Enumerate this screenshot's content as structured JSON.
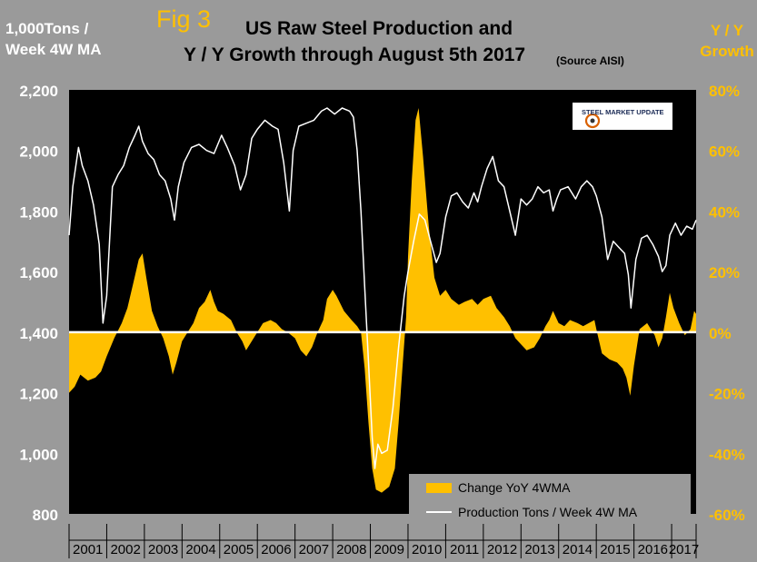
{
  "fig_label": "Fig 3",
  "title_line1": "US Raw Steel Production and",
  "title_line2": "Y / Y Growth through August 5th 2017",
  "source": "(Source AISI)",
  "left_axis_title": [
    "1,000Tons /",
    "Week 4W MA"
  ],
  "right_axis_title": [
    "Y / Y",
    "Growth"
  ],
  "logo_text": "STEEL MARKET UPDATE",
  "colors": {
    "background": "#9a9a9a",
    "plot": "#000000",
    "fill": "#ffc000",
    "line": "#ffffff",
    "right_axis": "#ffc000"
  },
  "chart_data": {
    "type": "area+line",
    "title": "US Raw Steel Production and Y / Y Growth through August 5th 2017",
    "source": "(Source AISI)",
    "x_range": [
      2001.0,
      2017.65
    ],
    "years": [
      "2001",
      "2002",
      "2003",
      "2004",
      "2005",
      "2006",
      "2007",
      "2008",
      "2009",
      "2010",
      "2011",
      "2012",
      "2013",
      "2014",
      "2015",
      "2016",
      "2017"
    ],
    "left_axis": {
      "label": "1,000Tons / Week 4W MA",
      "min": 800,
      "max": 2200,
      "ticks": [
        800,
        1000,
        1200,
        1400,
        1600,
        1800,
        2000,
        2200
      ],
      "tick_labels": [
        "800",
        "1,000",
        "1,200",
        "1,400",
        "1,600",
        "1,800",
        "2,000",
        "2,200"
      ]
    },
    "right_axis": {
      "label": "Y / Y Growth",
      "min": -60,
      "max": 80,
      "ticks": [
        -60,
        -40,
        -20,
        0,
        20,
        40,
        60,
        80
      ],
      "tick_labels": [
        "-60%",
        "-40%",
        "-20%",
        "0%",
        "20%",
        "40%",
        "60%",
        "80%"
      ]
    },
    "series": [
      {
        "name": "Change YoY 4WMA",
        "type": "area",
        "axis": "right",
        "points": [
          [
            2001.0,
            -20
          ],
          [
            2001.15,
            -18
          ],
          [
            2001.3,
            -14
          ],
          [
            2001.5,
            -16
          ],
          [
            2001.7,
            -15
          ],
          [
            2001.85,
            -13
          ],
          [
            2002.0,
            -8
          ],
          [
            2002.2,
            -2
          ],
          [
            2002.4,
            3
          ],
          [
            2002.55,
            8
          ],
          [
            2002.7,
            16
          ],
          [
            2002.85,
            24
          ],
          [
            2002.95,
            26
          ],
          [
            2003.05,
            18
          ],
          [
            2003.2,
            7
          ],
          [
            2003.35,
            2
          ],
          [
            2003.5,
            -2
          ],
          [
            2003.65,
            -8
          ],
          [
            2003.75,
            -14
          ],
          [
            2003.85,
            -10
          ],
          [
            2004.0,
            -3
          ],
          [
            2004.15,
            0
          ],
          [
            2004.3,
            3
          ],
          [
            2004.45,
            8
          ],
          [
            2004.6,
            10
          ],
          [
            2004.75,
            14
          ],
          [
            2004.85,
            10
          ],
          [
            2004.95,
            7
          ],
          [
            2005.1,
            6
          ],
          [
            2005.3,
            4
          ],
          [
            2005.45,
            0
          ],
          [
            2005.6,
            -3
          ],
          [
            2005.7,
            -6
          ],
          [
            2005.8,
            -4
          ],
          [
            2006.0,
            0
          ],
          [
            2006.15,
            3
          ],
          [
            2006.35,
            4
          ],
          [
            2006.5,
            3
          ],
          [
            2006.65,
            1
          ],
          [
            2006.8,
            0
          ],
          [
            2007.0,
            -2
          ],
          [
            2007.15,
            -6
          ],
          [
            2007.3,
            -8
          ],
          [
            2007.45,
            -5
          ],
          [
            2007.6,
            0
          ],
          [
            2007.75,
            4
          ],
          [
            2007.85,
            11
          ],
          [
            2008.0,
            14
          ],
          [
            2008.1,
            12
          ],
          [
            2008.3,
            7
          ],
          [
            2008.5,
            4
          ],
          [
            2008.65,
            2
          ],
          [
            2008.75,
            0
          ],
          [
            2008.85,
            -12
          ],
          [
            2008.95,
            -30
          ],
          [
            2009.05,
            -45
          ],
          [
            2009.15,
            -52
          ],
          [
            2009.3,
            -53
          ],
          [
            2009.5,
            -51
          ],
          [
            2009.65,
            -45
          ],
          [
            2009.75,
            -30
          ],
          [
            2009.85,
            -12
          ],
          [
            2009.95,
            5
          ],
          [
            2010.0,
            25
          ],
          [
            2010.1,
            50
          ],
          [
            2010.2,
            70
          ],
          [
            2010.28,
            74
          ],
          [
            2010.4,
            58
          ],
          [
            2010.55,
            35
          ],
          [
            2010.7,
            18
          ],
          [
            2010.85,
            12
          ],
          [
            2011.0,
            14
          ],
          [
            2011.15,
            11
          ],
          [
            2011.35,
            9
          ],
          [
            2011.5,
            10
          ],
          [
            2011.7,
            11
          ],
          [
            2011.85,
            9
          ],
          [
            2012.0,
            11
          ],
          [
            2012.2,
            12
          ],
          [
            2012.35,
            8
          ],
          [
            2012.55,
            5
          ],
          [
            2012.7,
            2
          ],
          [
            2012.85,
            -2
          ],
          [
            2013.0,
            -4
          ],
          [
            2013.15,
            -6
          ],
          [
            2013.35,
            -5
          ],
          [
            2013.5,
            -2
          ],
          [
            2013.65,
            2
          ],
          [
            2013.75,
            4
          ],
          [
            2013.85,
            7
          ],
          [
            2014.0,
            3
          ],
          [
            2014.15,
            2
          ],
          [
            2014.3,
            4
          ],
          [
            2014.5,
            3
          ],
          [
            2014.65,
            2
          ],
          [
            2014.8,
            3
          ],
          [
            2014.95,
            4
          ],
          [
            2015.0,
            1
          ],
          [
            2015.15,
            -7
          ],
          [
            2015.35,
            -9
          ],
          [
            2015.55,
            -10
          ],
          [
            2015.7,
            -12
          ],
          [
            2015.8,
            -15
          ],
          [
            2015.9,
            -21
          ],
          [
            2016.0,
            -11
          ],
          [
            2016.15,
            1
          ],
          [
            2016.35,
            3
          ],
          [
            2016.55,
            -1
          ],
          [
            2016.65,
            -5
          ],
          [
            2016.75,
            -2
          ],
          [
            2016.85,
            5
          ],
          [
            2016.95,
            13
          ],
          [
            2017.05,
            8
          ],
          [
            2017.2,
            3
          ],
          [
            2017.35,
            -1
          ],
          [
            2017.5,
            1
          ],
          [
            2017.6,
            7
          ],
          [
            2017.65,
            6
          ]
        ]
      },
      {
        "name": "Production Tons / Week 4W MA",
        "type": "line",
        "axis": "left",
        "points": [
          [
            2001.0,
            1720
          ],
          [
            2001.1,
            1880
          ],
          [
            2001.25,
            2010
          ],
          [
            2001.35,
            1950
          ],
          [
            2001.5,
            1900
          ],
          [
            2001.65,
            1820
          ],
          [
            2001.8,
            1690
          ],
          [
            2001.9,
            1430
          ],
          [
            2002.0,
            1520
          ],
          [
            2002.15,
            1880
          ],
          [
            2002.3,
            1920
          ],
          [
            2002.45,
            1950
          ],
          [
            2002.6,
            2010
          ],
          [
            2002.75,
            2050
          ],
          [
            2002.85,
            2080
          ],
          [
            2002.95,
            2030
          ],
          [
            2003.1,
            1990
          ],
          [
            2003.25,
            1970
          ],
          [
            2003.4,
            1920
          ],
          [
            2003.55,
            1900
          ],
          [
            2003.7,
            1840
          ],
          [
            2003.8,
            1770
          ],
          [
            2003.9,
            1880
          ],
          [
            2004.05,
            1960
          ],
          [
            2004.25,
            2010
          ],
          [
            2004.45,
            2020
          ],
          [
            2004.65,
            2000
          ],
          [
            2004.85,
            1990
          ],
          [
            2005.05,
            2050
          ],
          [
            2005.2,
            2010
          ],
          [
            2005.4,
            1950
          ],
          [
            2005.55,
            1870
          ],
          [
            2005.7,
            1920
          ],
          [
            2005.85,
            2040
          ],
          [
            2006.0,
            2070
          ],
          [
            2006.2,
            2100
          ],
          [
            2006.4,
            2080
          ],
          [
            2006.55,
            2070
          ],
          [
            2006.7,
            1960
          ],
          [
            2006.85,
            1800
          ],
          [
            2006.95,
            2000
          ],
          [
            2007.1,
            2080
          ],
          [
            2007.3,
            2090
          ],
          [
            2007.5,
            2100
          ],
          [
            2007.7,
            2130
          ],
          [
            2007.85,
            2140
          ],
          [
            2008.05,
            2120
          ],
          [
            2008.25,
            2140
          ],
          [
            2008.45,
            2130
          ],
          [
            2008.55,
            2110
          ],
          [
            2008.65,
            2000
          ],
          [
            2008.75,
            1800
          ],
          [
            2008.85,
            1550
          ],
          [
            2008.95,
            1300
          ],
          [
            2009.05,
            1050
          ],
          [
            2009.12,
            950
          ],
          [
            2009.2,
            1030
          ],
          [
            2009.3,
            1000
          ],
          [
            2009.45,
            1010
          ],
          [
            2009.6,
            1150
          ],
          [
            2009.75,
            1350
          ],
          [
            2009.9,
            1520
          ],
          [
            2010.0,
            1600
          ],
          [
            2010.15,
            1700
          ],
          [
            2010.3,
            1790
          ],
          [
            2010.45,
            1770
          ],
          [
            2010.6,
            1700
          ],
          [
            2010.75,
            1630
          ],
          [
            2010.85,
            1660
          ],
          [
            2011.0,
            1780
          ],
          [
            2011.15,
            1850
          ],
          [
            2011.3,
            1860
          ],
          [
            2011.45,
            1830
          ],
          [
            2011.6,
            1810
          ],
          [
            2011.75,
            1860
          ],
          [
            2011.85,
            1830
          ],
          [
            2011.95,
            1880
          ],
          [
            2012.1,
            1940
          ],
          [
            2012.25,
            1980
          ],
          [
            2012.4,
            1900
          ],
          [
            2012.55,
            1880
          ],
          [
            2012.7,
            1800
          ],
          [
            2012.85,
            1720
          ],
          [
            2013.0,
            1840
          ],
          [
            2013.15,
            1820
          ],
          [
            2013.3,
            1840
          ],
          [
            2013.45,
            1880
          ],
          [
            2013.6,
            1860
          ],
          [
            2013.75,
            1870
          ],
          [
            2013.85,
            1800
          ],
          [
            2013.95,
            1840
          ],
          [
            2014.05,
            1870
          ],
          [
            2014.25,
            1880
          ],
          [
            2014.45,
            1840
          ],
          [
            2014.6,
            1880
          ],
          [
            2014.75,
            1900
          ],
          [
            2014.9,
            1880
          ],
          [
            2015.0,
            1850
          ],
          [
            2015.15,
            1780
          ],
          [
            2015.3,
            1640
          ],
          [
            2015.45,
            1700
          ],
          [
            2015.6,
            1680
          ],
          [
            2015.75,
            1660
          ],
          [
            2015.85,
            1590
          ],
          [
            2015.92,
            1480
          ],
          [
            2016.05,
            1640
          ],
          [
            2016.2,
            1710
          ],
          [
            2016.35,
            1720
          ],
          [
            2016.5,
            1690
          ],
          [
            2016.65,
            1650
          ],
          [
            2016.75,
            1600
          ],
          [
            2016.85,
            1620
          ],
          [
            2016.95,
            1720
          ],
          [
            2017.1,
            1760
          ],
          [
            2017.25,
            1720
          ],
          [
            2017.4,
            1750
          ],
          [
            2017.55,
            1740
          ],
          [
            2017.65,
            1770
          ]
        ]
      }
    ],
    "legend": {
      "position": "bottom-right",
      "entries": [
        "Change YoY 4WMA",
        "Production Tons / Week 4W MA"
      ]
    },
    "grid": false
  }
}
